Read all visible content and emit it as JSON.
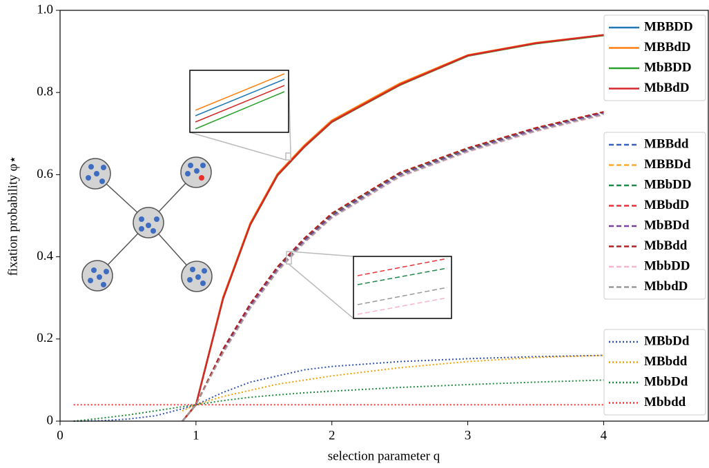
{
  "chart_data": {
    "type": "line",
    "x_label": "selection parameter q",
    "y_label": "fixation probability φ⋆",
    "x": [
      0.1,
      0.3,
      0.5,
      0.7,
      0.9,
      1,
      1.2,
      1.4,
      1.6,
      1.8,
      2,
      2.5,
      3,
      3.5,
      4
    ],
    "xlim": [
      0,
      4.77
    ],
    "ylim": [
      0,
      1
    ],
    "xticks": [
      0,
      1,
      2,
      3,
      4
    ],
    "yticks": [
      0,
      0.2,
      0.4,
      0.6,
      0.8,
      {
        "value": 1,
        "label": "1.0"
      }
    ],
    "series": [
      {
        "name": "MBBDD",
        "color": "#1f77b4",
        "style": "solid",
        "values": [
          null,
          null,
          null,
          null,
          0,
          0.04,
          0.3,
          0.48,
          0.6,
          0.67,
          0.73,
          0.82,
          0.89,
          0.92,
          0.94
        ]
      },
      {
        "name": "MBBdD",
        "color": "#ff7f0e",
        "style": "solid",
        "values": [
          null,
          null,
          null,
          null,
          0,
          0.04,
          0.302,
          0.482,
          0.602,
          0.672,
          0.732,
          0.822,
          0.891,
          0.921,
          0.94
        ]
      },
      {
        "name": "MbBDD",
        "color": "#2ca02c",
        "style": "solid",
        "values": [
          null,
          null,
          null,
          null,
          0,
          0.04,
          0.298,
          0.478,
          0.598,
          0.668,
          0.728,
          0.818,
          0.889,
          0.919,
          0.939
        ]
      },
      {
        "name": "MbBdD",
        "color": "#d62728",
        "style": "solid",
        "values": [
          null,
          null,
          null,
          null,
          0,
          0.04,
          0.299,
          0.479,
          0.599,
          0.669,
          0.729,
          0.819,
          0.89,
          0.92,
          0.94
        ]
      },
      {
        "name": "MBBdd",
        "color": "#3a5fc0",
        "style": "dashed",
        "values": [
          null,
          null,
          null,
          null,
          0,
          0.04,
          0.17,
          0.28,
          0.37,
          0.44,
          0.5,
          0.6,
          0.66,
          0.71,
          0.75
        ]
      },
      {
        "name": "MBBDd",
        "color": "#ffa726",
        "style": "dashed",
        "values": [
          null,
          null,
          null,
          null,
          0,
          0.04,
          0.172,
          0.282,
          0.372,
          0.442,
          0.502,
          0.602,
          0.662,
          0.712,
          0.752
        ]
      },
      {
        "name": "MBbDD",
        "color": "#1e8a4a",
        "style": "dashed",
        "values": [
          null,
          null,
          null,
          null,
          0,
          0.04,
          0.174,
          0.284,
          0.374,
          0.444,
          0.504,
          0.603,
          0.663,
          0.713,
          0.752
        ]
      },
      {
        "name": "MBbdD",
        "color": "#e8303a",
        "style": "dashed",
        "values": [
          null,
          null,
          null,
          null,
          0,
          0.04,
          0.176,
          0.286,
          0.376,
          0.446,
          0.506,
          0.605,
          0.665,
          0.714,
          0.753
        ]
      },
      {
        "name": "MbBDd",
        "color": "#7b3f9e",
        "style": "dashed",
        "values": [
          null,
          null,
          null,
          null,
          0,
          0.04,
          0.17,
          0.28,
          0.37,
          0.44,
          0.5,
          0.6,
          0.66,
          0.71,
          0.75
        ]
      },
      {
        "name": "MbBdd",
        "color": "#b22222",
        "style": "dashed",
        "values": [
          null,
          null,
          null,
          null,
          0,
          0.04,
          0.176,
          0.286,
          0.376,
          0.446,
          0.506,
          0.605,
          0.665,
          0.714,
          0.753
        ]
      },
      {
        "name": "MbbDD",
        "color": "#f7b6c8",
        "style": "dashed",
        "values": [
          null,
          null,
          null,
          null,
          0,
          0.04,
          0.165,
          0.274,
          0.364,
          0.434,
          0.494,
          0.594,
          0.655,
          0.705,
          0.745
        ]
      },
      {
        "name": "MbbdD",
        "color": "#999999",
        "style": "dashed",
        "values": [
          null,
          null,
          null,
          null,
          0,
          0.04,
          0.167,
          0.276,
          0.366,
          0.436,
          0.496,
          0.596,
          0.657,
          0.707,
          0.747
        ]
      },
      {
        "name": "MBbDd",
        "color": "#3050b0",
        "style": "dotted",
        "values": [
          0,
          0.001,
          0.005,
          0.013,
          0.03,
          0.04,
          0.07,
          0.095,
          0.11,
          0.125,
          0.133,
          0.145,
          0.152,
          0.157,
          0.16
        ]
      },
      {
        "name": "MBbdd",
        "color": "#f0a000",
        "style": "dotted",
        "values": [
          null,
          null,
          null,
          null,
          0.025,
          0.04,
          0.06,
          0.075,
          0.09,
          0.1,
          0.11,
          0.13,
          0.145,
          0.155,
          0.16
        ]
      },
      {
        "name": "MbbDd",
        "color": "#1a8a3a",
        "style": "dotted",
        "values": [
          0,
          0.007,
          0.015,
          0.025,
          0.035,
          0.04,
          0.05,
          0.058,
          0.064,
          0.069,
          0.073,
          0.082,
          0.089,
          0.095,
          0.1
        ]
      },
      {
        "name": "Mbbdd",
        "color": "#ff3030",
        "style": "dotted",
        "values": [
          0.04,
          0.04,
          0.04,
          0.04,
          0.04,
          0.04,
          0.04,
          0.04,
          0.04,
          0.04,
          0.04,
          0.04,
          0.04,
          0.04,
          0.04
        ]
      }
    ]
  }
}
